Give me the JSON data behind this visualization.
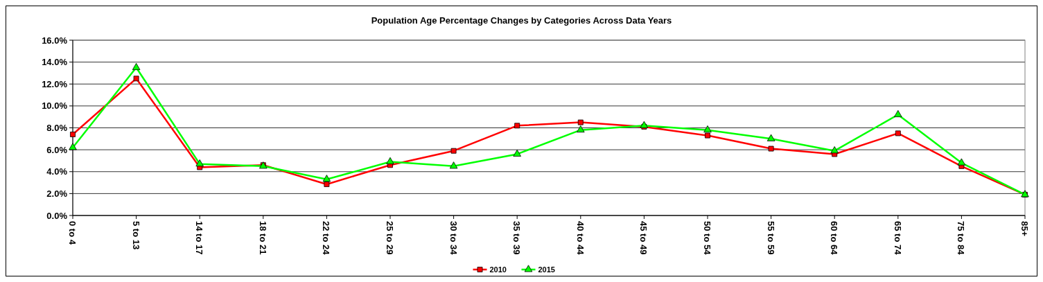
{
  "chart_data": {
    "type": "line",
    "title": "Population Age Percentage Changes by Categories Across Data Years",
    "categories": [
      "0 to 4",
      "5 to 13",
      "14 to 17",
      "18 to 21",
      "22 to 24",
      "25 to 29",
      "30 to 34",
      "35 to 39",
      "40 to 44",
      "45 to 49",
      "50 to 54",
      "55 to 59",
      "60 to 64",
      "65 to 74",
      "75 to 84",
      "85+"
    ],
    "series": [
      {
        "name": "2010",
        "color": "#ff0000",
        "marker": "square",
        "values": [
          7.4,
          12.5,
          4.4,
          4.6,
          2.85,
          4.6,
          5.9,
          8.2,
          8.5,
          8.1,
          7.3,
          6.1,
          5.6,
          7.5,
          4.5,
          1.9
        ]
      },
      {
        "name": "2015",
        "color": "#00ff00",
        "marker": "triangle",
        "values": [
          6.2,
          13.5,
          4.7,
          4.5,
          3.3,
          4.9,
          4.5,
          5.6,
          7.8,
          8.2,
          7.8,
          7.0,
          5.9,
          9.2,
          4.8,
          1.9
        ]
      }
    ],
    "ylim": [
      0,
      16
    ],
    "yticks": [
      {
        "value": 0,
        "label": "0.0%"
      },
      {
        "value": 2,
        "label": "2.0%"
      },
      {
        "value": 4,
        "label": "4.0%"
      },
      {
        "value": 6,
        "label": "6.0%"
      },
      {
        "value": 8,
        "label": "8.0%"
      },
      {
        "value": 10,
        "label": "10.0%"
      },
      {
        "value": 12,
        "label": "12.0%"
      },
      {
        "value": 14,
        "label": "14.0%"
      },
      {
        "value": 16,
        "label": "16.0%"
      }
    ],
    "grid": "y",
    "legend": "bottom"
  }
}
